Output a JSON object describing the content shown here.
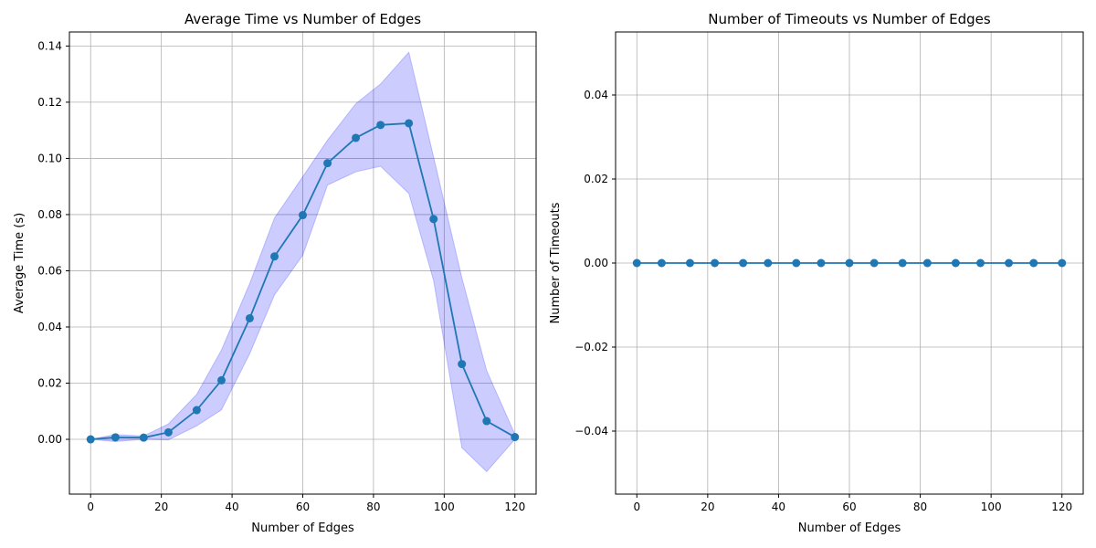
{
  "chart_data": [
    {
      "type": "line",
      "title": "Average Time vs Number of Edges",
      "xlabel": "Number of Edges",
      "ylabel": "Average Time (s)",
      "xlim": [
        -6,
        126
      ],
      "ylim": [
        -0.0195,
        0.145
      ],
      "xticks": [
        0,
        20,
        40,
        60,
        80,
        100,
        120
      ],
      "yticks": [
        0.0,
        0.02,
        0.04,
        0.06,
        0.08,
        0.1,
        0.12,
        0.14
      ],
      "ytick_labels": [
        "0.00",
        "0.02",
        "0.04",
        "0.06",
        "0.08",
        "0.10",
        "0.12",
        "0.14"
      ],
      "grid": true,
      "x": [
        0,
        7,
        15,
        22,
        30,
        37,
        45,
        52,
        60,
        67,
        75,
        82,
        90,
        97,
        105,
        112,
        120
      ],
      "series": [
        {
          "color": "#1f77b4",
          "marker": "circle",
          "values": [
            0.0,
            0.0007,
            0.0006,
            0.0025,
            0.0104,
            0.021,
            0.0431,
            0.0651,
            0.0798,
            0.0983,
            0.1073,
            0.1119,
            0.1125,
            0.0784,
            0.0268,
            0.0065,
            0.0008
          ]
        }
      ],
      "band": {
        "color": "#0000ff",
        "opacity": 0.2,
        "lower": [
          0.0,
          -0.0008,
          0.0,
          -0.0002,
          0.0048,
          0.0105,
          0.0305,
          0.0514,
          0.0655,
          0.0905,
          0.0952,
          0.0972,
          0.0875,
          0.0565,
          -0.003,
          -0.0115,
          0.0
        ],
        "upper": [
          0.0,
          0.0017,
          0.0012,
          0.0055,
          0.016,
          0.0318,
          0.0555,
          0.0788,
          0.0935,
          0.1065,
          0.1195,
          0.1265,
          0.1378,
          0.1005,
          0.0575,
          0.0245,
          0.0018
        ]
      }
    },
    {
      "type": "line",
      "title": "Number of Timeouts vs Number of Edges",
      "xlabel": "Number of Edges",
      "ylabel": "Number of Timeouts",
      "xlim": [
        -6,
        126
      ],
      "ylim": [
        -0.055,
        0.055
      ],
      "xticks": [
        0,
        20,
        40,
        60,
        80,
        100,
        120
      ],
      "yticks": [
        -0.04,
        -0.02,
        0.0,
        0.02,
        0.04
      ],
      "ytick_labels": [
        "−0.04",
        "−0.02",
        "0.00",
        "0.02",
        "0.04"
      ],
      "grid": true,
      "x": [
        0,
        7,
        15,
        22,
        30,
        37,
        45,
        52,
        60,
        67,
        75,
        82,
        90,
        97,
        105,
        112,
        120
      ],
      "series": [
        {
          "color": "#1f77b4",
          "marker": "circle",
          "values": [
            0,
            0,
            0,
            0,
            0,
            0,
            0,
            0,
            0,
            0,
            0,
            0,
            0,
            0,
            0,
            0,
            0
          ]
        }
      ]
    }
  ]
}
